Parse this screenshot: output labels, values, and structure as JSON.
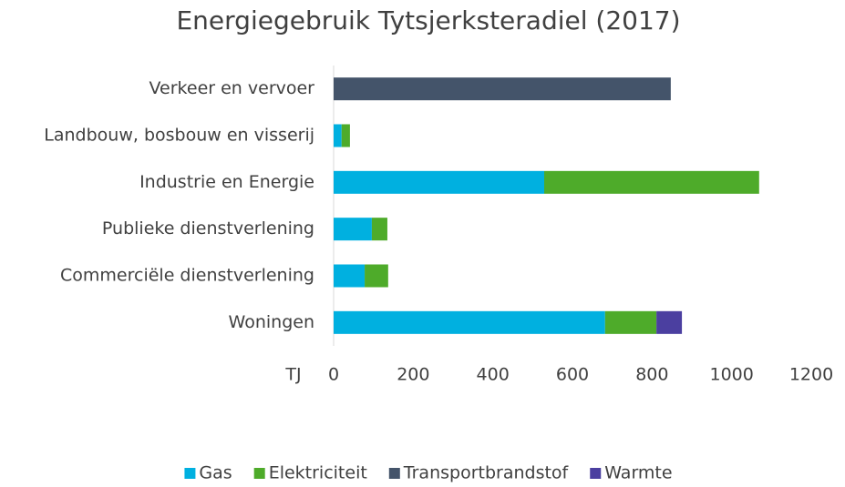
{
  "chart_data": {
    "type": "stacked_barh",
    "title": "Energiegebruik Tytsjerksteradiel (2017)",
    "categories": [
      "Verkeer en vervoer",
      "Landbouw, bosbouw en visserij",
      "Industrie en Energie",
      "Publieke dienstverlening",
      "Commerciële dienstverlening",
      "Woningen"
    ],
    "series": [
      {
        "name": "Gas",
        "color": "#00b0e0",
        "values": [
          null,
          20,
          529,
          96,
          78,
          682
        ]
      },
      {
        "name": "Elektriciteit",
        "color": "#4eab2a",
        "values": [
          null,
          21,
          540,
          39,
          59,
          129
        ]
      },
      {
        "name": "Transportbrandstof",
        "color": "#44546a",
        "values": [
          847,
          null,
          null,
          null,
          null,
          null
        ]
      },
      {
        "name": "Warmte",
        "color": "#4b3fa0",
        "values": [
          null,
          null,
          null,
          null,
          null,
          64
        ]
      }
    ],
    "xlabel": "TJ",
    "xlim": [
      0,
      1200
    ],
    "xticks": [
      0,
      200,
      400,
      600,
      800,
      1000,
      1200
    ],
    "grid": false,
    "legend": "bottom"
  }
}
